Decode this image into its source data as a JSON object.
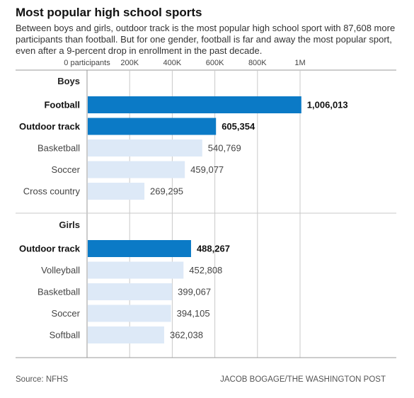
{
  "title": "Most popular high school sports",
  "subtitle": "Between boys and girls, outdoor track is the most popular high school sport with 87,608 more participants than football. But for one gender, football is far and away the most popular sport, even after a 9-percent drop in enrollment in the past decade.",
  "source": "Source: NFHS",
  "credit": "JACOB BOGAGE/THE WASHINGTON POST",
  "colors": {
    "highlight": "#0b7ac6",
    "regular": "#dde9f7",
    "grid": "#c9c9c9",
    "axis": "#999999"
  },
  "chart_data": {
    "type": "bar",
    "orientation": "horizontal",
    "xlim": [
      0,
      1000000
    ],
    "ticks": [
      0,
      200000,
      400000,
      600000,
      800000,
      1000000
    ],
    "tick_labels": [
      "0 participants",
      "200K",
      "400K",
      "600K",
      "800K",
      "1M"
    ],
    "groups": [
      {
        "name": "Boys",
        "bars": [
          {
            "label": "Football",
            "value": 1006013,
            "display": "1,006,013",
            "highlight": true
          },
          {
            "label": "Outdoor track",
            "value": 605354,
            "display": "605,354",
            "highlight": true
          },
          {
            "label": "Basketball",
            "value": 540769,
            "display": "540,769",
            "highlight": false
          },
          {
            "label": "Soccer",
            "value": 459077,
            "display": "459,077",
            "highlight": false
          },
          {
            "label": "Cross country",
            "value": 269295,
            "display": "269,295",
            "highlight": false
          }
        ]
      },
      {
        "name": "Girls",
        "bars": [
          {
            "label": "Outdoor track",
            "value": 488267,
            "display": "488,267",
            "highlight": true
          },
          {
            "label": "Volleyball",
            "value": 452808,
            "display": "452,808",
            "highlight": false
          },
          {
            "label": "Basketball",
            "value": 399067,
            "display": "399,067",
            "highlight": false
          },
          {
            "label": "Soccer",
            "value": 394105,
            "display": "394,105",
            "highlight": false
          },
          {
            "label": "Softball",
            "value": 362038,
            "display": "362,038",
            "highlight": false
          }
        ]
      }
    ]
  }
}
